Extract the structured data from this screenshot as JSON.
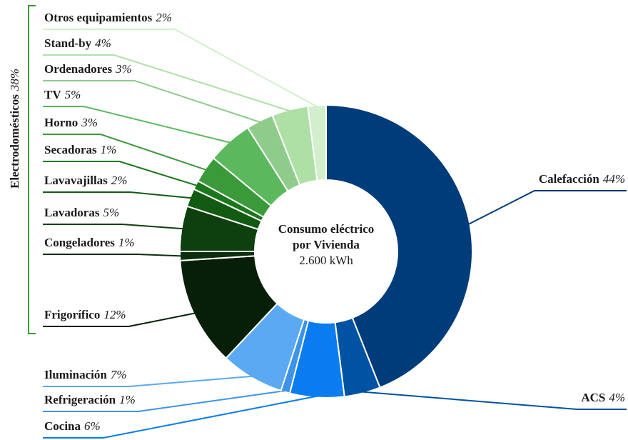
{
  "chart_data": {
    "type": "donut",
    "categories": [
      "Calefacción",
      "ACS",
      "Cocina",
      "Refrigeración",
      "Iluminación",
      "Frigorífico",
      "Congeladores",
      "Lavadoras",
      "Lavavajillas",
      "Secadoras",
      "Horno",
      "TV",
      "Ordenadores",
      "Stand-by",
      "Otros equipamientos"
    ],
    "values": [
      44,
      4,
      6,
      1,
      7,
      12,
      1,
      5,
      2,
      1,
      3,
      5,
      3,
      4,
      2
    ],
    "value_labels": [
      "44%",
      "4%",
      "6%",
      "1%",
      "7%",
      "12%",
      "1%",
      "5%",
      "2%",
      "1%",
      "3%",
      "5%",
      "3%",
      "4%",
      "2%"
    ],
    "colors": [
      "#003b7a",
      "#0052a3",
      "#0a7cf0",
      "#3d92ea",
      "#5aa9f2",
      "#071f07",
      "#0c2e0c",
      "#0e3f0f",
      "#135a13",
      "#1c771c",
      "#3a9a3a",
      "#5cb85c",
      "#8fcc8c",
      "#aee0a6",
      "#d2eecd"
    ],
    "center": {
      "lines": [
        "Consumo eléctrico",
        "por Vivienda",
        "2.600 kWh"
      ]
    },
    "group": {
      "name": "Electrodomésticos",
      "value": 38,
      "value_label": "38%",
      "color": "#3a9a3a"
    }
  }
}
